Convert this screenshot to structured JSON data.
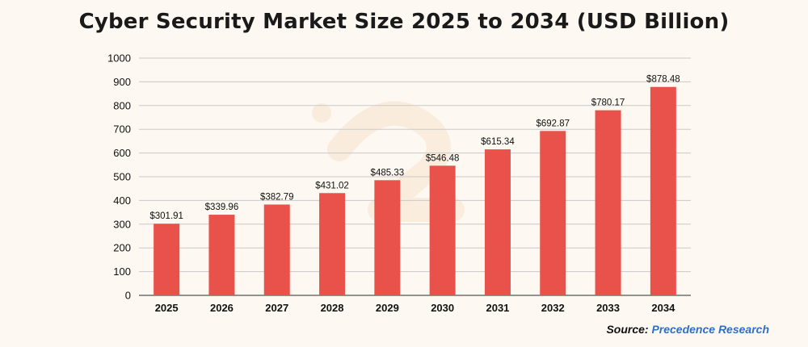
{
  "chart_data": {
    "type": "bar",
    "title": "Cyber Security Market Size 2025 to 2034 (USD Billion)",
    "xlabel": "",
    "ylabel": "",
    "categories": [
      "2025",
      "2026",
      "2027",
      "2028",
      "2029",
      "2030",
      "2031",
      "2032",
      "2033",
      "2034"
    ],
    "values": [
      301.91,
      339.96,
      382.79,
      431.02,
      485.33,
      546.48,
      615.34,
      692.87,
      780.17,
      878.48
    ],
    "data_labels": [
      "$301.91",
      "$339.96",
      "$382.79",
      "$431.02",
      "$485.33",
      "$546.48",
      "$615.34",
      "$692.87",
      "$780.17",
      "$878.48"
    ],
    "ylim": [
      0,
      1000
    ],
    "yticks": [
      0,
      100,
      200,
      300,
      400,
      500,
      600,
      700,
      800,
      900,
      1000
    ],
    "grid": true,
    "colors": {
      "bar": "#e8524a",
      "grid": "#c9c9c9",
      "axis": "#555555",
      "background": "#fdf8f1",
      "source_link": "#2f6fc6"
    }
  },
  "source": {
    "label": "Source:",
    "name": "Precedence Research"
  }
}
